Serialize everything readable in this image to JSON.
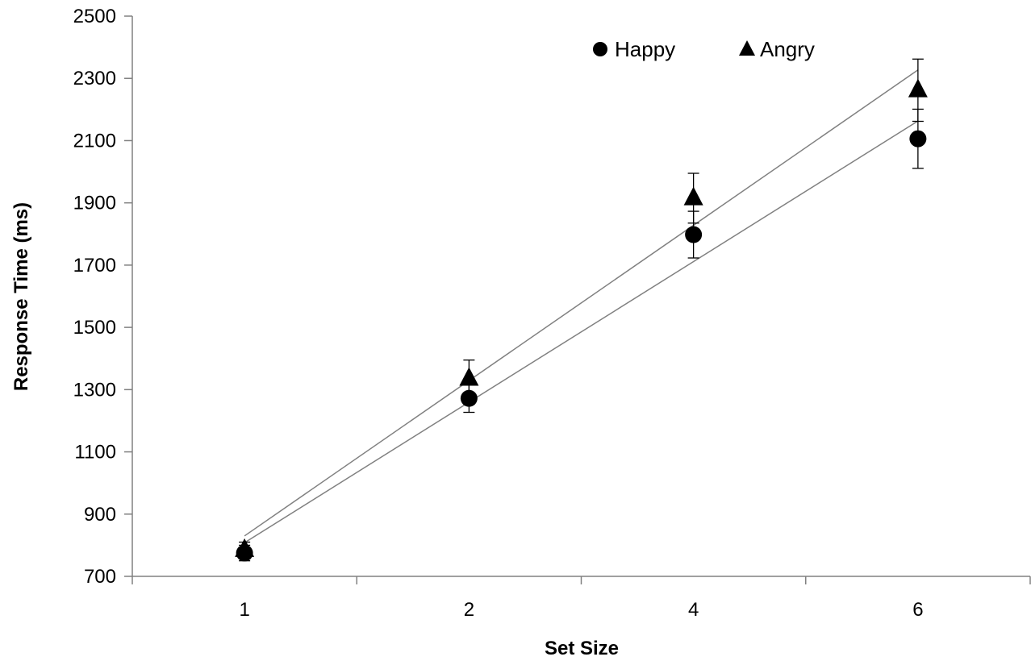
{
  "chart_data": {
    "type": "scatter",
    "title": "",
    "xlabel": "Set Size",
    "ylabel": "Response Time (ms)",
    "categories": [
      "1",
      "2",
      "4",
      "6"
    ],
    "ylim": [
      700,
      2500
    ],
    "yticks": [
      700,
      900,
      1100,
      1300,
      1500,
      1700,
      1900,
      2100,
      2300,
      2500
    ],
    "grid": false,
    "legend": "top-center",
    "series": [
      {
        "name": "Happy",
        "marker": "circle",
        "values": [
          775,
          1272,
          1798,
          2106
        ],
        "error": [
          25,
          45,
          75,
          95
        ],
        "trendline": [
          808,
          1258,
          1711,
          2163
        ]
      },
      {
        "name": "Angry",
        "marker": "triangle",
        "values": [
          785,
          1335,
          1915,
          2262
        ],
        "error": [
          25,
          60,
          80,
          100
        ],
        "trendline": [
          830,
          1330,
          1829,
          2327
        ]
      }
    ],
    "colors": {
      "marker": "#000000",
      "axis": "#808080",
      "trendline": "#808080"
    }
  }
}
